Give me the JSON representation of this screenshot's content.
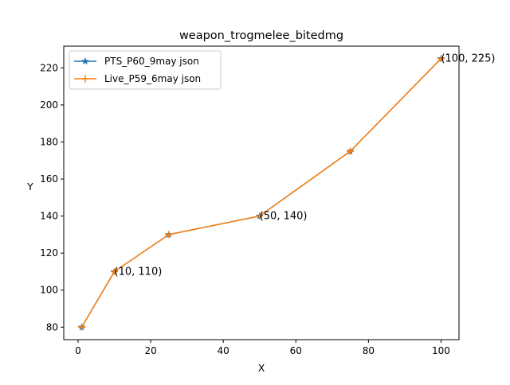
{
  "chart_data": {
    "type": "line",
    "title": "weapon_trogmelee_bitedmg",
    "xlabel": "X",
    "ylabel": "Y",
    "xlim": [
      -3.95,
      104.95
    ],
    "ylim": [
      73.25,
      231.75
    ],
    "xticks": [
      0,
      20,
      40,
      60,
      80,
      100
    ],
    "yticks": [
      80,
      100,
      120,
      140,
      160,
      180,
      200,
      220
    ],
    "grid": false,
    "legend_position": "upper left",
    "series": [
      {
        "name": "PTS_P60_9may json",
        "x": [
          1,
          10,
          25,
          50,
          75,
          100
        ],
        "y": [
          80,
          110,
          130,
          140,
          175,
          225
        ],
        "color": "#1f77b4",
        "marker": "star"
      },
      {
        "name": "Live_P59_6may json",
        "x": [
          1,
          10,
          25,
          50,
          75,
          100
        ],
        "y": [
          80,
          110,
          130,
          140,
          175,
          225
        ],
        "color": "#ff7f0e",
        "marker": "plus"
      }
    ],
    "annotations": [
      {
        "x": 10,
        "y": 110,
        "text": "(10, 110)"
      },
      {
        "x": 50,
        "y": 140,
        "text": "(50, 140)"
      },
      {
        "x": 100,
        "y": 225,
        "text": "(100, 225)"
      }
    ]
  }
}
